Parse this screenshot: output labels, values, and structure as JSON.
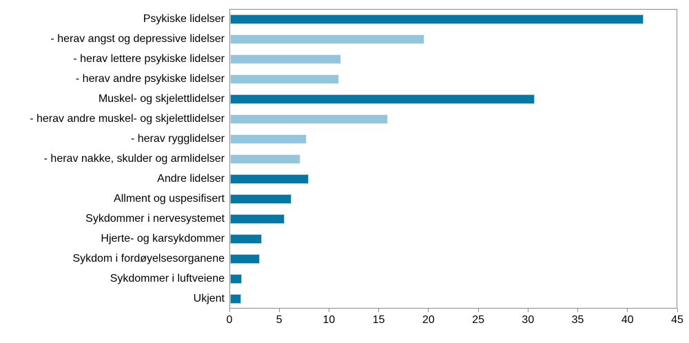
{
  "chart_data": {
    "type": "bar",
    "orientation": "horizontal",
    "title": "",
    "xlabel": "",
    "ylabel": "",
    "xlim": [
      0,
      45
    ],
    "xticks": [
      0,
      5,
      10,
      15,
      20,
      25,
      30,
      35,
      40,
      45
    ],
    "grid": false,
    "legend": "none",
    "categories": [
      "Psykiske lidelser",
      "- herav angst og depressive lidelser",
      "- herav lettere psykiske lidelser",
      "- herav andre psykiske lidelser",
      "Muskel- og skjelettlidelser",
      "- herav andre muskel- og skjelettlidelser",
      "- herav rygglidelser",
      "- herav nakke, skulder og armlidelser",
      "Andre lidelser",
      "Allment og uspesifisert",
      "Sykdommer i nervesystemet",
      "Hjerte- og karsykdommer",
      "Sykdom i fordøyelsesorganene",
      "Sykdommer i luftveiene",
      "Ukjent"
    ],
    "values": [
      41.7,
      19.6,
      11.2,
      11.0,
      30.7,
      15.9,
      7.7,
      7.1,
      7.9,
      6.2,
      5.5,
      3.2,
      3.0,
      1.2,
      1.1
    ],
    "shades": [
      "dark",
      "light",
      "light",
      "light",
      "dark",
      "light",
      "light",
      "light",
      "dark",
      "dark",
      "dark",
      "dark",
      "dark",
      "dark",
      "dark"
    ],
    "colors": {
      "dark": "#0677a3",
      "dark_border": "#a5d2e5",
      "light": "#93c5dc",
      "light_border": "#e2f1f8",
      "axis": "#8a8a8a",
      "text": "#000000",
      "background": "#ffffff"
    }
  }
}
